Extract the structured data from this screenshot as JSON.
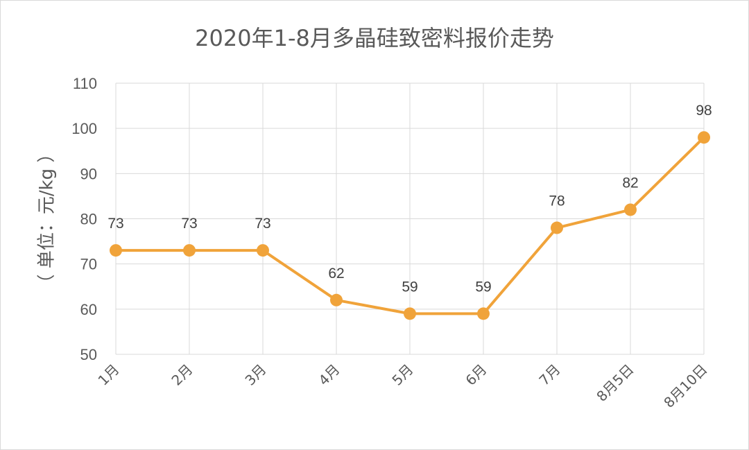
{
  "chart_data": {
    "type": "line",
    "title": "2020年1-8月多晶硅致密料报价走势",
    "ylabel": "（ 单位：元/kg ）",
    "xlabel": "",
    "categories": [
      "1月",
      "2月",
      "3月",
      "4月",
      "5月",
      "6月",
      "7月",
      "8月5日",
      "8月10日"
    ],
    "series": [
      {
        "values": [
          73,
          73,
          73,
          62,
          59,
          59,
          78,
          82,
          98
        ],
        "color": "#F0A33A"
      }
    ],
    "ylim": [
      50,
      110
    ],
    "yticks": [
      50,
      60,
      70,
      80,
      90,
      100,
      110
    ],
    "grid": true,
    "data_labels": true
  }
}
